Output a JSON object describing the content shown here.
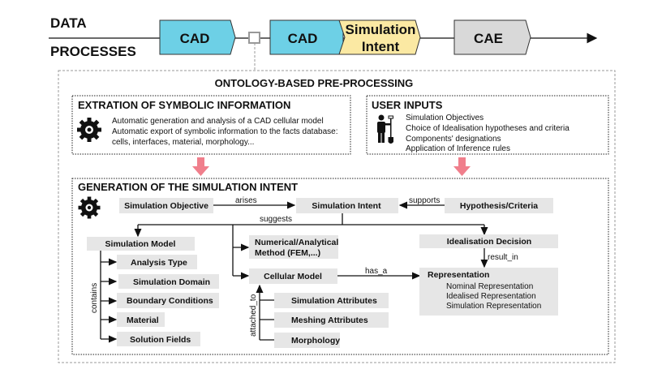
{
  "top": {
    "data_label": "DATA",
    "processes_label": "PROCESSES",
    "cad1": "CAD",
    "cad2": "CAD",
    "sim_intent_line1": "Simulation",
    "sim_intent_line2": "Intent",
    "cae": "CAE",
    "colors": {
      "cad": "#6dd0e6",
      "sim_intent": "#fbe9a3",
      "cae": "#d9d9d9",
      "arrow_pink": "#f07f8c"
    }
  },
  "ontology": {
    "title": "ONTOLOGY-BASED PRE-PROCESSING",
    "extraction": {
      "title": "EXTRATION OF SYMBOLIC INFORMATION",
      "icon": "gear-icon",
      "lines": [
        "Automatic generation and analysis of a CAD cellular model",
        "Automatic export of symbolic information to the facts database:",
        "cells, interfaces, material, morphology..."
      ]
    },
    "user_inputs": {
      "title": "USER INPUTS",
      "icon": "person-with-shovel-icon",
      "lines": [
        "Simulation Objectives",
        "Choice of Idealisation hypotheses and criteria",
        "Components' designations",
        "Application of Inference rules"
      ]
    },
    "generation": {
      "title": "GENERATION OF THE SIMULATION INTENT",
      "nodes": {
        "simulation_objective": "Simulation Objective",
        "simulation_intent": "Simulation Intent",
        "hypothesis": "Hypothesis/Criteria",
        "simulation_model": "Simulation Model",
        "numerical_1": "Numerical/Analytical",
        "numerical_2": "Method (FEM,...)",
        "idealisation_decision": "Idealisation Decision",
        "cellular_model": "Cellular Model",
        "representation": "Representation",
        "representation_items": [
          "Nominal Representation",
          "Idealised Representation",
          "Simulation Representation"
        ],
        "model_children": [
          "Analysis Type",
          "Simulation Domain",
          "Boundary Conditions",
          "Material",
          "Solution Fields"
        ],
        "cellular_children": [
          "Simulation Attributes",
          "Meshing Attributes",
          "Morphology"
        ]
      },
      "relations": {
        "arises": "arises",
        "supports": "supports",
        "suggests": "suggests",
        "result_in": "result_in",
        "has_a": "has_a",
        "contains": "contains",
        "attached_to": "attached_to"
      }
    }
  }
}
